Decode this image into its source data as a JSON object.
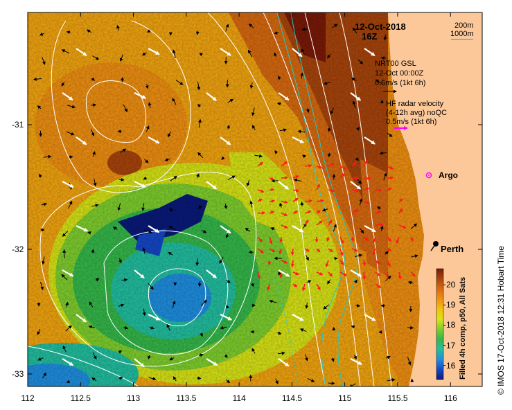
{
  "map": {
    "date": "12-Oct-2018",
    "hour": "16Z",
    "depth_legend": {
      "label_200": "200m",
      "label_1000": "1000m",
      "line_color": "#22c7c7"
    },
    "gsl": {
      "title": "NRT00 GSL",
      "date": "12-Oct 00:00Z",
      "scale": "0.5m/s (1kt 6h)",
      "arrow_color": "#000000"
    },
    "hf_radar": {
      "line1": "HF radar velocity",
      "line2": "(4-12h avg) noQC",
      "scale": "0.5m/s (1kt 6h)",
      "arrow_color": "#ff00ff"
    },
    "argo": {
      "label": "Argo",
      "lon": 115.88,
      "lat": -31.52
    },
    "perth": {
      "label": "Perth",
      "lon": 115.86,
      "lat": -31.95
    },
    "lon_ticks": [
      "112",
      "112.5",
      "113",
      "113.5",
      "114",
      "114.5",
      "115",
      "115.5",
      "116"
    ],
    "lat_ticks": [
      "-31",
      "-32",
      "-33"
    ],
    "colorbar": {
      "title": "Filled 4h comp, p50, All Sats",
      "ticks": [
        "16",
        "17",
        "18",
        "19",
        "20"
      ],
      "range": [
        15.3,
        20.8
      ],
      "colors": [
        "#0a1a7a",
        "#1548c8",
        "#1f8fe0",
        "#22bfa0",
        "#35b84a",
        "#7fcf2e",
        "#d8e416",
        "#f2c10a",
        "#ef9012",
        "#d86a10",
        "#a8450c",
        "#7a1a08"
      ]
    },
    "credit": "© IMOS 17-Oct-2018 12:31 Hobart Time",
    "land_color": "#fcc89a"
  }
}
